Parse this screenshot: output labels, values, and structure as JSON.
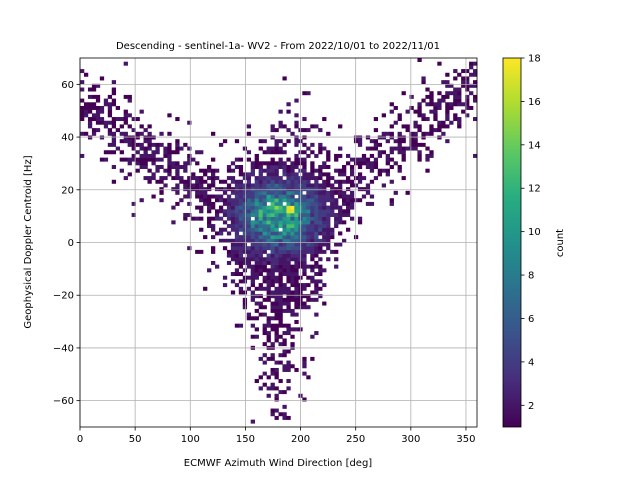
{
  "chart_data": {
    "type": "heatmap",
    "title": "Descending - sentinel-1a- WV2 - From 2022/10/01 to 2022/11/01",
    "xlabel": "ECMWF Azimuth Wind Direction [deg]",
    "ylabel": "Geophysical Doppler Centroid [Hz]",
    "xlim": [
      0,
      360
    ],
    "ylim": [
      -70,
      70
    ],
    "x_ticks": [
      0,
      50,
      100,
      150,
      200,
      250,
      300,
      350
    ],
    "y_ticks": [
      -60,
      -40,
      -20,
      0,
      20,
      40,
      60
    ],
    "x_tick_labels": [
      "0",
      "50",
      "100",
      "150",
      "200",
      "250",
      "300",
      "350"
    ],
    "y_tick_labels": [
      "−60",
      "−40",
      "−20",
      "0",
      "20",
      "40",
      "60"
    ],
    "grid": true,
    "colormap": "viridis",
    "colorbar": {
      "label": "count",
      "range": [
        1,
        18
      ],
      "ticks": [
        2,
        4,
        6,
        8,
        10,
        12,
        14,
        16,
        18
      ],
      "tick_labels": [
        "2",
        "4",
        "6",
        "8",
        "10",
        "12",
        "14",
        "16",
        "18"
      ]
    },
    "bin_size": {
      "x": 3.6,
      "y": 1.4
    },
    "peak": {
      "x": 192,
      "y": 13,
      "count": 18
    },
    "density_description": "V-shaped distribution: dense core centered near 180 deg / 10 Hz spreading from about -27 to 20 Hz, with arms rising to 60-70 Hz near 0 deg and 360 deg",
    "ridge": [
      [
        0,
        52
      ],
      [
        30,
        44
      ],
      [
        60,
        34
      ],
      [
        90,
        24
      ],
      [
        120,
        15
      ],
      [
        150,
        10
      ],
      [
        180,
        8
      ],
      [
        210,
        11
      ],
      [
        240,
        20
      ],
      [
        270,
        31
      ],
      [
        300,
        42
      ],
      [
        330,
        52
      ],
      [
        360,
        60
      ]
    ]
  }
}
